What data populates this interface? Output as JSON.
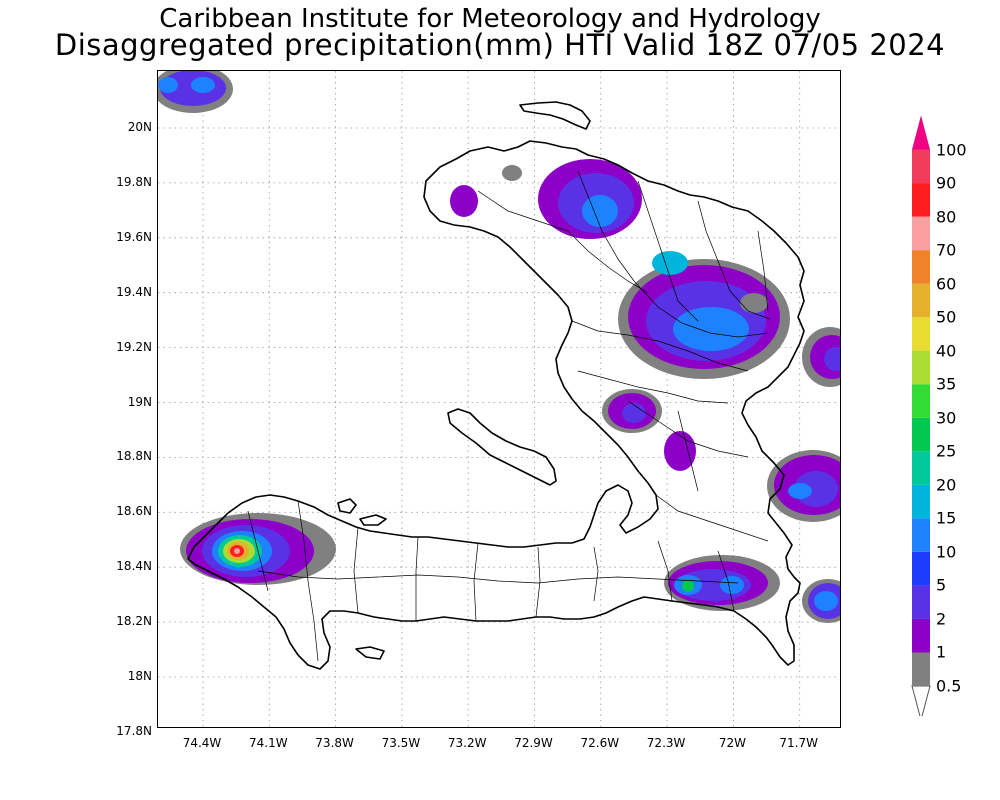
{
  "header": {
    "institute": "Caribbean Institute for Meteorology and Hydrology",
    "product": "Disaggregated precipitation(mm) HTI Valid 18Z 07/05 2024"
  },
  "axes": {
    "lat_labels": [
      "20N",
      "19.8N",
      "19.6N",
      "19.4N",
      "19.2N",
      "19N",
      "18.8N",
      "18.6N",
      "18.4N",
      "18.2N",
      "18N",
      "17.8N"
    ],
    "lon_labels": [
      "74.4W",
      "74.1W",
      "73.8W",
      "73.5W",
      "73.2W",
      "72.9W",
      "72.6W",
      "72.3W",
      "72W",
      "71.7W"
    ],
    "lat_range": [
      17.8,
      20.2
    ],
    "lon_range": [
      -74.55,
      -71.45
    ],
    "grid": "dotted"
  },
  "legend": {
    "levels": [
      "0.5",
      "1",
      "2",
      "5",
      "10",
      "15",
      "20",
      "25",
      "30",
      "35",
      "40",
      "50",
      "60",
      "70",
      "80",
      "90",
      "100"
    ],
    "colors": [
      "#808080",
      "#8c00c8",
      "#5a32e6",
      "#1e3cff",
      "#1e82ff",
      "#00b4dc",
      "#00c89b",
      "#00c850",
      "#32dc32",
      "#aadc32",
      "#e6dc32",
      "#e6af2d",
      "#f08228",
      "#faa0a0",
      "#ff1e1e",
      "#f03c5a",
      "#f00082"
    ]
  }
}
